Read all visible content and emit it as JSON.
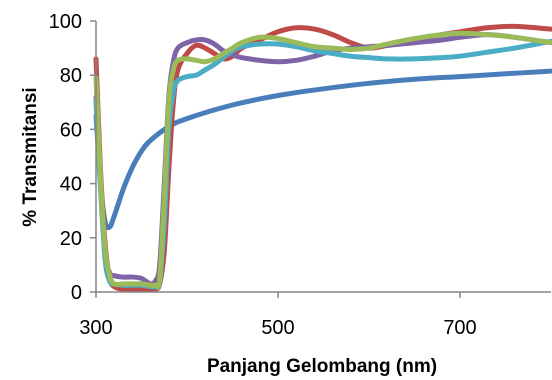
{
  "chart_data": {
    "type": "line",
    "title": "",
    "xlabel": "Panjang Gelombang (nm)",
    "ylabel": "% Transmitansi",
    "xlim": [
      300,
      800
    ],
    "ylim": [
      0,
      100
    ],
    "xticks": [
      300,
      500,
      700
    ],
    "yticks": [
      0,
      20,
      40,
      60,
      80,
      100
    ],
    "grid": false,
    "legend": "none",
    "series": [
      {
        "color": "#4a7ebb",
        "points": [
          [
            300,
            65
          ],
          [
            305,
            40
          ],
          [
            310,
            26
          ],
          [
            315,
            24
          ],
          [
            320,
            28
          ],
          [
            330,
            38
          ],
          [
            340,
            46
          ],
          [
            350,
            52
          ],
          [
            360,
            56
          ],
          [
            380,
            61
          ],
          [
            400,
            64
          ],
          [
            450,
            69
          ],
          [
            500,
            72.5
          ],
          [
            550,
            75
          ],
          [
            600,
            77
          ],
          [
            650,
            78.5
          ],
          [
            700,
            79.5
          ],
          [
            750,
            80.5
          ],
          [
            800,
            81.5
          ]
        ]
      },
      {
        "color": "#be4b48",
        "points": [
          [
            300,
            86
          ],
          [
            305,
            45
          ],
          [
            310,
            18
          ],
          [
            315,
            5
          ],
          [
            320,
            2
          ],
          [
            330,
            1
          ],
          [
            340,
            1
          ],
          [
            350,
            1
          ],
          [
            360,
            1
          ],
          [
            365,
            1
          ],
          [
            370,
            3
          ],
          [
            375,
            15
          ],
          [
            380,
            45
          ],
          [
            385,
            70
          ],
          [
            390,
            82
          ],
          [
            400,
            88
          ],
          [
            410,
            91
          ],
          [
            420,
            90
          ],
          [
            430,
            88
          ],
          [
            440,
            86
          ],
          [
            450,
            87
          ],
          [
            460,
            90
          ],
          [
            480,
            93
          ],
          [
            500,
            96
          ],
          [
            520,
            97.5
          ],
          [
            540,
            97
          ],
          [
            560,
            95
          ],
          [
            580,
            92
          ],
          [
            600,
            90
          ],
          [
            620,
            91
          ],
          [
            650,
            93
          ],
          [
            680,
            95
          ],
          [
            700,
            96
          ],
          [
            730,
            97.5
          ],
          [
            760,
            98
          ],
          [
            800,
            97
          ]
        ]
      },
      {
        "color": "#7e63a6",
        "points": [
          [
            300,
            72
          ],
          [
            305,
            40
          ],
          [
            310,
            15
          ],
          [
            315,
            7
          ],
          [
            320,
            6
          ],
          [
            330,
            5.5
          ],
          [
            340,
            5.5
          ],
          [
            350,
            5
          ],
          [
            360,
            3
          ],
          [
            365,
            4
          ],
          [
            370,
            10
          ],
          [
            375,
            40
          ],
          [
            380,
            72
          ],
          [
            385,
            85
          ],
          [
            390,
            90
          ],
          [
            400,
            92
          ],
          [
            410,
            93
          ],
          [
            420,
            93
          ],
          [
            430,
            91.5
          ],
          [
            440,
            89
          ],
          [
            450,
            87.5
          ],
          [
            460,
            86.5
          ],
          [
            480,
            85.5
          ],
          [
            500,
            85
          ],
          [
            520,
            85.5
          ],
          [
            540,
            87
          ],
          [
            560,
            89
          ],
          [
            580,
            90
          ],
          [
            600,
            90.5
          ],
          [
            620,
            91
          ],
          [
            650,
            92
          ],
          [
            680,
            93
          ],
          [
            700,
            94
          ],
          [
            730,
            95
          ],
          [
            760,
            94
          ],
          [
            800,
            92
          ]
        ]
      },
      {
        "color": "#4bacc6",
        "points": [
          [
            300,
            70
          ],
          [
            305,
            38
          ],
          [
            310,
            12
          ],
          [
            315,
            4
          ],
          [
            320,
            3
          ],
          [
            330,
            2.5
          ],
          [
            340,
            2.5
          ],
          [
            350,
            2.5
          ],
          [
            360,
            2
          ],
          [
            365,
            2
          ],
          [
            370,
            4
          ],
          [
            375,
            25
          ],
          [
            380,
            60
          ],
          [
            385,
            74
          ],
          [
            390,
            78
          ],
          [
            400,
            79.5
          ],
          [
            410,
            80
          ],
          [
            420,
            82
          ],
          [
            430,
            84
          ],
          [
            440,
            86.5
          ],
          [
            450,
            89
          ],
          [
            460,
            90.5
          ],
          [
            480,
            91.5
          ],
          [
            500,
            91.5
          ],
          [
            520,
            90.5
          ],
          [
            540,
            89
          ],
          [
            560,
            88
          ],
          [
            580,
            87
          ],
          [
            600,
            86.5
          ],
          [
            620,
            86
          ],
          [
            650,
            86
          ],
          [
            680,
            86.5
          ],
          [
            700,
            87
          ],
          [
            730,
            88.5
          ],
          [
            760,
            90
          ],
          [
            800,
            92.5
          ]
        ]
      },
      {
        "color": "#9bbb59",
        "points": [
          [
            300,
            79
          ],
          [
            305,
            42
          ],
          [
            310,
            16
          ],
          [
            315,
            6
          ],
          [
            320,
            3
          ],
          [
            330,
            3
          ],
          [
            340,
            3
          ],
          [
            350,
            3
          ],
          [
            360,
            2.5
          ],
          [
            365,
            2.5
          ],
          [
            370,
            5
          ],
          [
            375,
            35
          ],
          [
            380,
            70
          ],
          [
            385,
            82
          ],
          [
            390,
            85.5
          ],
          [
            400,
            86
          ],
          [
            410,
            85.5
          ],
          [
            420,
            85
          ],
          [
            430,
            86
          ],
          [
            440,
            88
          ],
          [
            450,
            90
          ],
          [
            460,
            92
          ],
          [
            480,
            94
          ],
          [
            500,
            93.5
          ],
          [
            520,
            92
          ],
          [
            540,
            90.5
          ],
          [
            560,
            90
          ],
          [
            580,
            89.5
          ],
          [
            600,
            90
          ],
          [
            620,
            91.5
          ],
          [
            650,
            93.5
          ],
          [
            680,
            95
          ],
          [
            700,
            95.5
          ],
          [
            730,
            95
          ],
          [
            760,
            94
          ],
          [
            800,
            92
          ]
        ]
      }
    ]
  }
}
